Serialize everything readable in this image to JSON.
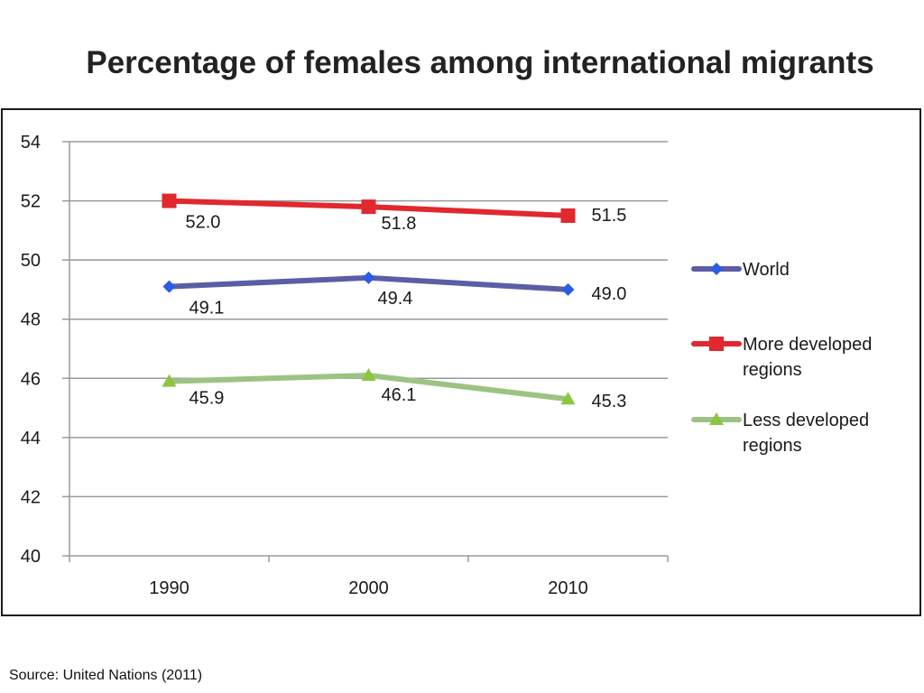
{
  "slide": {
    "title": "Percentage of females among international migrants",
    "source": "Source: United Nations (2011)"
  },
  "colors": {
    "grid": "#9a9a9a",
    "text": "#1a1a1a"
  },
  "chart_data": {
    "type": "line",
    "title": "",
    "xlabel": "",
    "ylabel": "",
    "x": [
      "1990",
      "2000",
      "2010"
    ],
    "ylim": [
      40,
      54
    ],
    "yticks": [
      "40",
      "42",
      "44",
      "46",
      "48",
      "50",
      "52",
      "54"
    ],
    "grid": true,
    "legend_position": "right",
    "series": [
      {
        "name": "World",
        "values": [
          49.1,
          49.4,
          49.0
        ],
        "labels": [
          "49.1",
          "49.4",
          "49.0"
        ],
        "color": "#5b5ea6",
        "marker_color": "#2b5ce6",
        "marker": "diamond"
      },
      {
        "name": "More developed regions",
        "values": [
          52.0,
          51.8,
          51.5
        ],
        "labels": [
          "52.0",
          "51.8",
          "51.5"
        ],
        "color": "#e0282e",
        "marker_color": "#e0282e",
        "marker": "square"
      },
      {
        "name": "Less developed regions",
        "values": [
          45.9,
          46.1,
          45.3
        ],
        "labels": [
          "45.9",
          "46.1",
          "45.3"
        ],
        "color": "#9dc384",
        "marker_color": "#8cc63f",
        "marker": "triangle"
      }
    ]
  }
}
